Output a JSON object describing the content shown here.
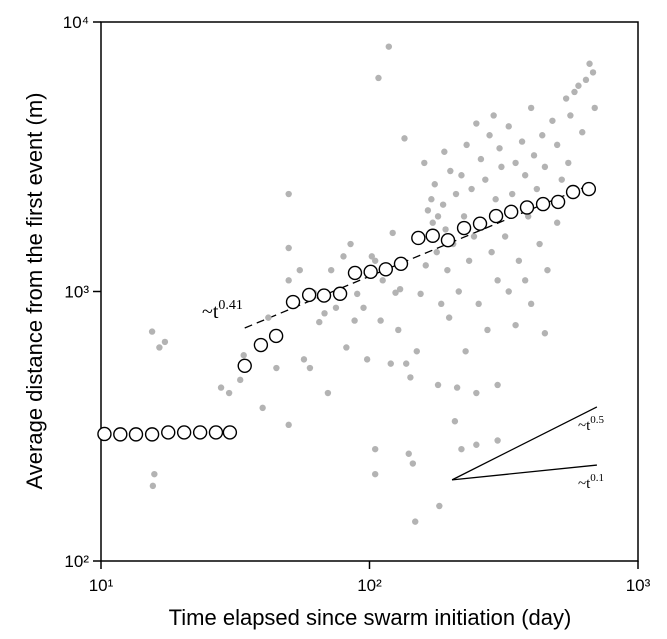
{
  "chart_data": {
    "type": "scatter",
    "x_label": "Time elapsed since swarm initiation (day)",
    "y_label": "Average distance from the first event (m)",
    "log_x": true,
    "log_y": true,
    "xlim": [
      10,
      1000
    ],
    "ylim": [
      100,
      10000
    ],
    "xticks": [
      {
        "value": 10,
        "label": "10¹"
      },
      {
        "value": 100,
        "label": "10²"
      },
      {
        "value": 1000,
        "label": "10³"
      }
    ],
    "yticks": [
      {
        "value": 100,
        "label": "10²"
      },
      {
        "value": 1000,
        "label": "10³"
      },
      {
        "value": 10000,
        "label": "10⁴"
      }
    ],
    "series": [
      {
        "name": "Events",
        "color": "#b3b3b3",
        "marker": "dot",
        "x": [
          15.5,
          16.5,
          17.3,
          15.8,
          15.6,
          28,
          30,
          33,
          34,
          40,
          42,
          45,
          50,
          50,
          50,
          50,
          55,
          57,
          60,
          62,
          65,
          68,
          70,
          72,
          75,
          80,
          82,
          85,
          88,
          90,
          95,
          98,
          100,
          102,
          105,
          105,
          105,
          108,
          110,
          112,
          118,
          120,
          122,
          125,
          128,
          130,
          135,
          137,
          140,
          142,
          145,
          148,
          150,
          155,
          160,
          162,
          165,
          170,
          172,
          175,
          178,
          180,
          182,
          185,
          188,
          190,
          192,
          195,
          198,
          200,
          205,
          208,
          210,
          212,
          215,
          220,
          225,
          228,
          230,
          235,
          240,
          245,
          250,
          255,
          260,
          265,
          270,
          275,
          280,
          285,
          290,
          295,
          300,
          305,
          310,
          320,
          330,
          340,
          350,
          360,
          370,
          380,
          390,
          400,
          410,
          420,
          430,
          440,
          450,
          460,
          480,
          500,
          520,
          540,
          560,
          580,
          600,
          620,
          640,
          660,
          680,
          690,
          350,
          300,
          250,
          220,
          180,
          250,
          300,
          400,
          450,
          500,
          550,
          380,
          330
        ],
        "values": [
          710,
          620,
          650,
          210,
          190,
          440,
          420,
          470,
          580,
          370,
          800,
          520,
          2300,
          1100,
          1450,
          320,
          1200,
          560,
          520,
          990,
          770,
          830,
          420,
          1200,
          870,
          1350,
          620,
          1500,
          780,
          980,
          870,
          560,
          1150,
          1350,
          1300,
          260,
          210,
          6200,
          780,
          1100,
          8100,
          540,
          1650,
          990,
          720,
          1020,
          3700,
          540,
          250,
          480,
          230,
          140,
          600,
          980,
          3000,
          1250,
          2000,
          2200,
          1800,
          2500,
          1400,
          1900,
          160,
          900,
          2100,
          3300,
          1700,
          1200,
          800,
          2800,
          1500,
          330,
          2300,
          440,
          1000,
          2700,
          1900,
          600,
          3500,
          1300,
          2400,
          1600,
          4200,
          900,
          3100,
          1750,
          2600,
          720,
          3800,
          1400,
          4500,
          2200,
          1100,
          3400,
          2900,
          1600,
          4100,
          2300,
          3000,
          1300,
          3600,
          2700,
          1900,
          4800,
          3200,
          2400,
          1500,
          3800,
          2900,
          1200,
          4300,
          3500,
          2600,
          5200,
          4500,
          5500,
          5800,
          3900,
          6100,
          7000,
          6500,
          4800,
          750,
          450,
          420,
          260,
          450,
          270,
          280,
          900,
          700,
          1800,
          3000,
          1100,
          1000
        ]
      },
      {
        "name": "Average distance",
        "color": "#000000",
        "marker": "open-circle",
        "x": [
          10.3,
          11.8,
          13.5,
          15.5,
          17.8,
          20.4,
          23.4,
          26.8,
          30.2,
          34.3,
          39.4,
          44.9,
          51.9,
          59.6,
          67.7,
          77.7,
          88.3,
          101,
          115,
          131,
          152,
          172,
          196,
          225,
          258,
          296,
          337,
          386,
          443,
          504,
          573,
          656
        ],
        "values": [
          296,
          295,
          295,
          295,
          300,
          300,
          300,
          300,
          300,
          530,
          633,
          684,
          914,
          971,
          966,
          981,
          1172,
          1183,
          1209,
          1267,
          1580,
          1610,
          1550,
          1720,
          1785,
          1905,
          1975,
          2050,
          2110,
          2150,
          2340,
          2400
        ]
      }
    ],
    "lines": [
      {
        "x": [
          34.3,
          662
        ],
        "values": [
          732,
          2485
        ],
        "dashed": true,
        "color": "#000000"
      },
      {
        "x": [
          203,
          703
        ],
        "values": [
          200,
          373
        ],
        "dashed": false,
        "color": "#000000"
      },
      {
        "x": [
          203,
          703
        ],
        "values": [
          200,
          227
        ],
        "dashed": false,
        "color": "#000000"
      }
    ],
    "annotations": [
      {
        "text": "~t",
        "exponent": "0.41"
      },
      {
        "text": "~t",
        "exponent": "0.5"
      },
      {
        "text": "~t",
        "exponent": "0.1"
      }
    ]
  }
}
